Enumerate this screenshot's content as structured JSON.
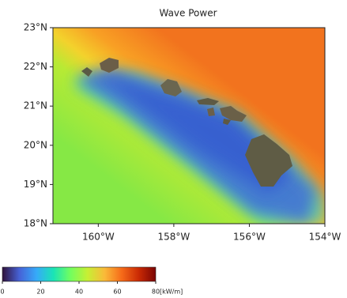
{
  "chart_data": {
    "type": "map",
    "title": "Wave Power",
    "xlim": [
      -161.2,
      -154
    ],
    "ylim": [
      18,
      23
    ],
    "xticks": [
      {
        "value": -160,
        "label": "160°W"
      },
      {
        "value": -158,
        "label": "158°W"
      },
      {
        "value": -156,
        "label": "156°W"
      },
      {
        "value": -154,
        "label": "154°W"
      }
    ],
    "yticks": [
      {
        "value": 18,
        "label": "18°N"
      },
      {
        "value": 19,
        "label": "19°N"
      },
      {
        "value": 20,
        "label": "20°N"
      },
      {
        "value": 21,
        "label": "21°N"
      },
      {
        "value": 22,
        "label": "22°N"
      },
      {
        "value": 23,
        "label": "23°N"
      }
    ],
    "colorbar": {
      "lim": [
        0,
        80
      ],
      "ticks": [
        0,
        20,
        40,
        60,
        80
      ],
      "unit": "[kW/m]",
      "colors": [
        "#30123b",
        "#4662d7",
        "#36aaf9",
        "#1ae4b6",
        "#72fe5e",
        "#c7ef34",
        "#faba39",
        "#f66b19",
        "#ca2a04",
        "#7a0403"
      ]
    }
  }
}
